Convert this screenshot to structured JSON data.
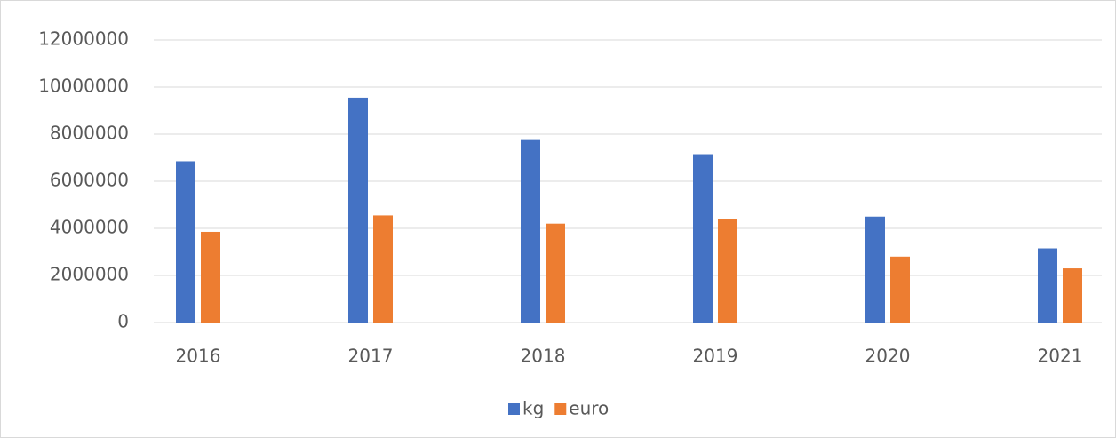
{
  "chart_data": {
    "type": "bar",
    "categories": [
      "2016",
      "2017",
      "2018",
      "2019",
      "2020",
      "2021"
    ],
    "series": [
      {
        "name": "kg",
        "color": "#4472c4",
        "values": [
          6850000,
          9550000,
          7750000,
          7150000,
          4500000,
          3150000
        ]
      },
      {
        "name": "euro",
        "color": "#ed7d31",
        "values": [
          3850000,
          4550000,
          4200000,
          4400000,
          2800000,
          2300000
        ]
      }
    ],
    "ylim": [
      0,
      12000000
    ],
    "yticks": [
      0,
      2000000,
      4000000,
      6000000,
      8000000,
      10000000,
      12000000
    ],
    "grid": true,
    "legend": "bottom"
  }
}
